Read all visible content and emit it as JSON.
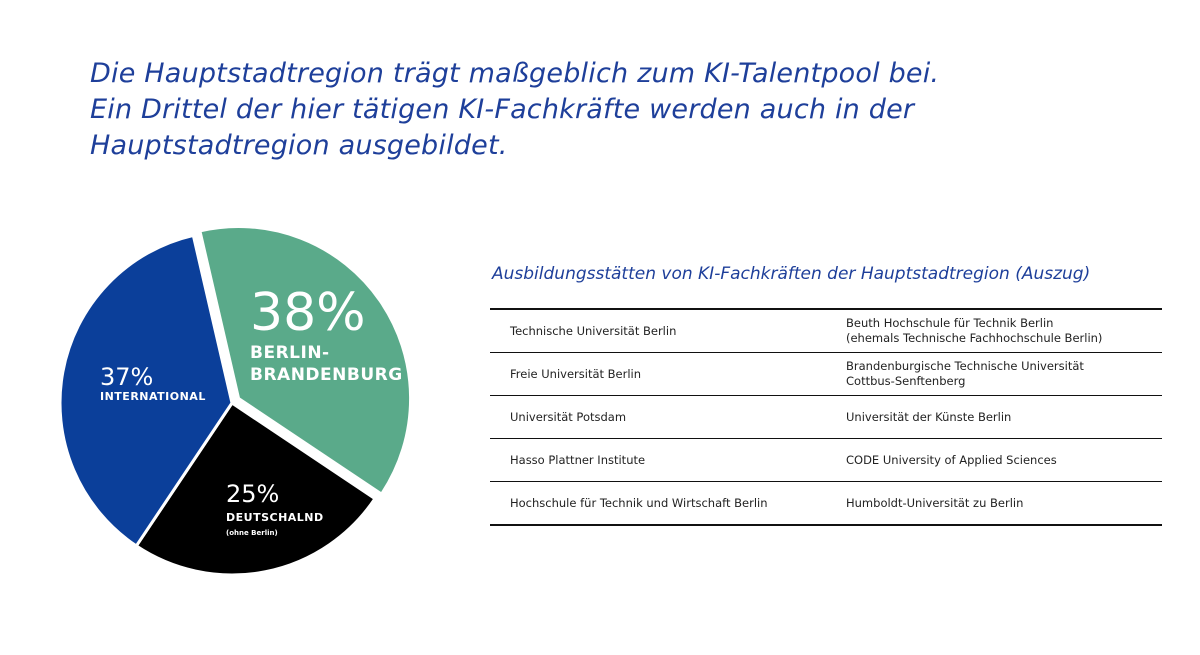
{
  "headline": {
    "line1": "Die Hauptstadtregion trägt maßgeblich zum KI-Talentpool bei.",
    "line2": "Ein Drittel der hier tätigen KI-Fachkräfte werden auch in der",
    "line3": "Hauptstadtregion ausgebildet."
  },
  "chart_data": {
    "type": "pie",
    "slices": [
      {
        "label": "BERLIN-\nBRANDENBURG",
        "value": 38,
        "value_label": "38%",
        "color": "#5aaa8a"
      },
      {
        "label": "DEUTSCHALND",
        "sublabel": "(ohne Berlin)",
        "value": 25,
        "value_label": "25%",
        "color": "#000000"
      },
      {
        "label": "INTERNATIONAL",
        "value": 37,
        "value_label": "37%",
        "color": "#0b3f9a"
      }
    ]
  },
  "table": {
    "title": "Ausbildungsstätten von KI-Fachkräften der Hauptstadtregion (Auszug)",
    "rows": [
      [
        "Technische Universität Berlin",
        "Beuth Hochschule für Technik Berlin\n(ehemals Technische Fachhochschule Berlin)"
      ],
      [
        "Freie Universität Berlin",
        "Brandenburgische Technische Universität\nCottbus-Senftenberg"
      ],
      [
        "Universität Potsdam",
        "Universität der Künste Berlin"
      ],
      [
        "Hasso Plattner Institute",
        "CODE University of Applied Sciences"
      ],
      [
        "Hochschule für Technik und Wirtschaft Berlin",
        "Humboldt-Universität zu Berlin"
      ]
    ]
  }
}
